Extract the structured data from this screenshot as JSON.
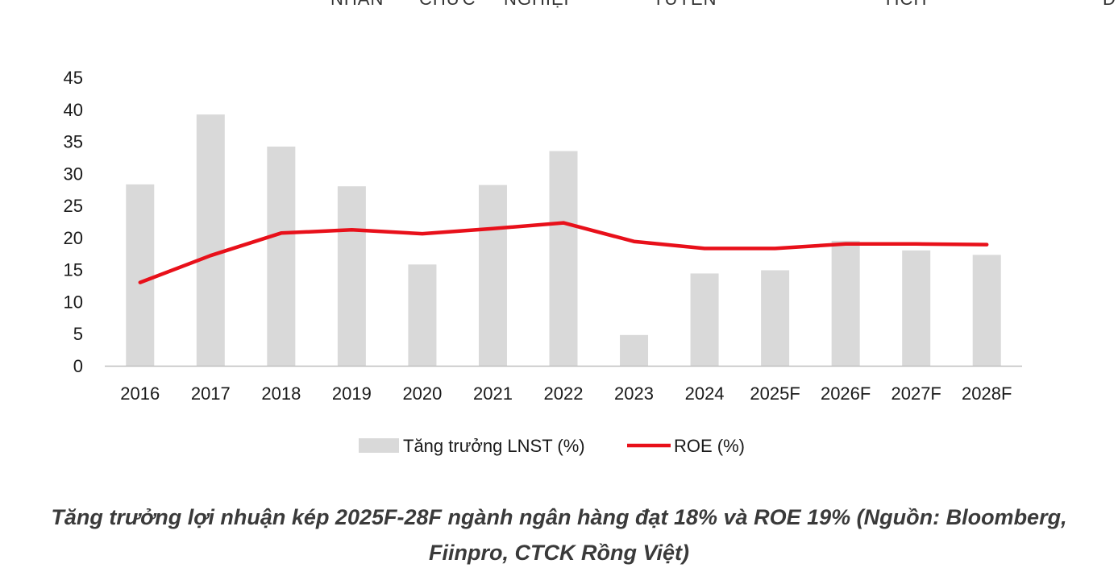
{
  "top_nav": {
    "items": [
      "NHÂN",
      "CHỨC",
      "NGHIỆP",
      "TUYỂN",
      "TÍCH",
      "Đ"
    ]
  },
  "caption": {
    "line1": "Tăng trưởng lợi nhuận kép 2025F-28F ngành ngân hàng đạt 18% và ROE 19% (Nguồn: Bloomberg,",
    "line2": "Fiinpro, CTCK Rồng Việt)"
  },
  "colors": {
    "bar": "#d9d9d9",
    "line": "#e8101a",
    "axis": "#bfbfbf",
    "text": "#1a1a1a"
  },
  "chart_data": {
    "type": "bar",
    "categories": [
      "2016",
      "2017",
      "2018",
      "2019",
      "2020",
      "2021",
      "2022",
      "2023",
      "2024",
      "2025F",
      "2026F",
      "2027F",
      "2028F"
    ],
    "series": [
      {
        "name": "Tăng trưởng LNST (%)",
        "type": "bar",
        "values": [
          28.3,
          39.2,
          34.2,
          28.0,
          15.8,
          28.2,
          33.5,
          4.8,
          14.4,
          14.9,
          19.5,
          18.0,
          17.3
        ]
      },
      {
        "name": "ROE (%)",
        "type": "line",
        "values": [
          13.0,
          17.2,
          20.7,
          21.2,
          20.6,
          21.4,
          22.3,
          19.4,
          18.3,
          18.3,
          19.0,
          19.0,
          18.9
        ]
      }
    ],
    "ylim": [
      0,
      45
    ],
    "yticks": [
      "0",
      "5",
      "10",
      "15",
      "20",
      "25",
      "30",
      "35",
      "40",
      "45"
    ],
    "grid": false,
    "legend": "bottom"
  }
}
